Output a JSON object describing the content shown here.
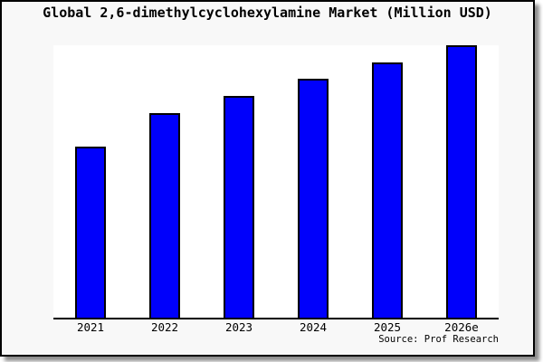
{
  "title": "Global 2,6-dimethylcyclohexylamine Market (Million USD)",
  "source_note": "Source: Prof Research",
  "colors": {
    "bar_fill": "#0000FB",
    "bar_border": "#000000",
    "frame_background": "#F8F8F8",
    "plot_background": "#FFFFFF",
    "axis": "#000000",
    "text": "#000000"
  },
  "chart_data": {
    "type": "bar",
    "title": "Global 2,6-dimethylcyclohexylamine Market (Million USD)",
    "unit": "Million USD",
    "categories": [
      "2021",
      "2022",
      "2023",
      "2024",
      "2025",
      "2026e"
    ],
    "values_relative_pct": [
      62.8,
      75.1,
      81.4,
      87.7,
      93.7,
      100
    ],
    "ylabel": "",
    "xlabel": "",
    "y_axis_ticks": "none shown",
    "grid": false,
    "legend": false,
    "source": "Source: Prof Research"
  }
}
